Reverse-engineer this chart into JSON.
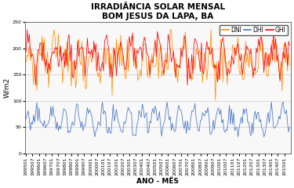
{
  "title_line1": "IRRADIÂNCIA SOLAR MENSAL",
  "title_line2": "BOM JESUS DA LAPA, BA",
  "xlabel": "ANO - MÊS",
  "ylabel": "W/m2",
  "ylim": [
    0,
    250
  ],
  "yticks": [
    0,
    50,
    100,
    150,
    200,
    250
  ],
  "legend_labels": [
    "DNI",
    "DHI",
    "GHI"
  ],
  "line_colors": [
    "#FF8C00",
    "#4472C4",
    "#FF0000"
  ],
  "start_year": 1995,
  "start_month": 1,
  "end_year": 2015,
  "end_month": 6,
  "ghi_base": 185,
  "ghi_amp": 20,
  "ghi_noise": 18,
  "ghi_min": 130,
  "ghi_max": 235,
  "dni_base": 175,
  "dni_amp": 22,
  "dni_noise": 22,
  "dni_min": 100,
  "dni_max": 235,
  "dhi_base": 63,
  "dhi_amp": 18,
  "dhi_noise": 10,
  "dhi_min": 32,
  "dhi_max": 98,
  "background_color": "#FFFFFF",
  "plot_bg_color": "#F8F8F8",
  "grid_color": "#CCCCCC",
  "title_fontsize": 7.5,
  "axis_label_fontsize": 6.5,
  "tick_fontsize": 4.5,
  "legend_fontsize": 5.5,
  "border_color": "#5B5B5B"
}
